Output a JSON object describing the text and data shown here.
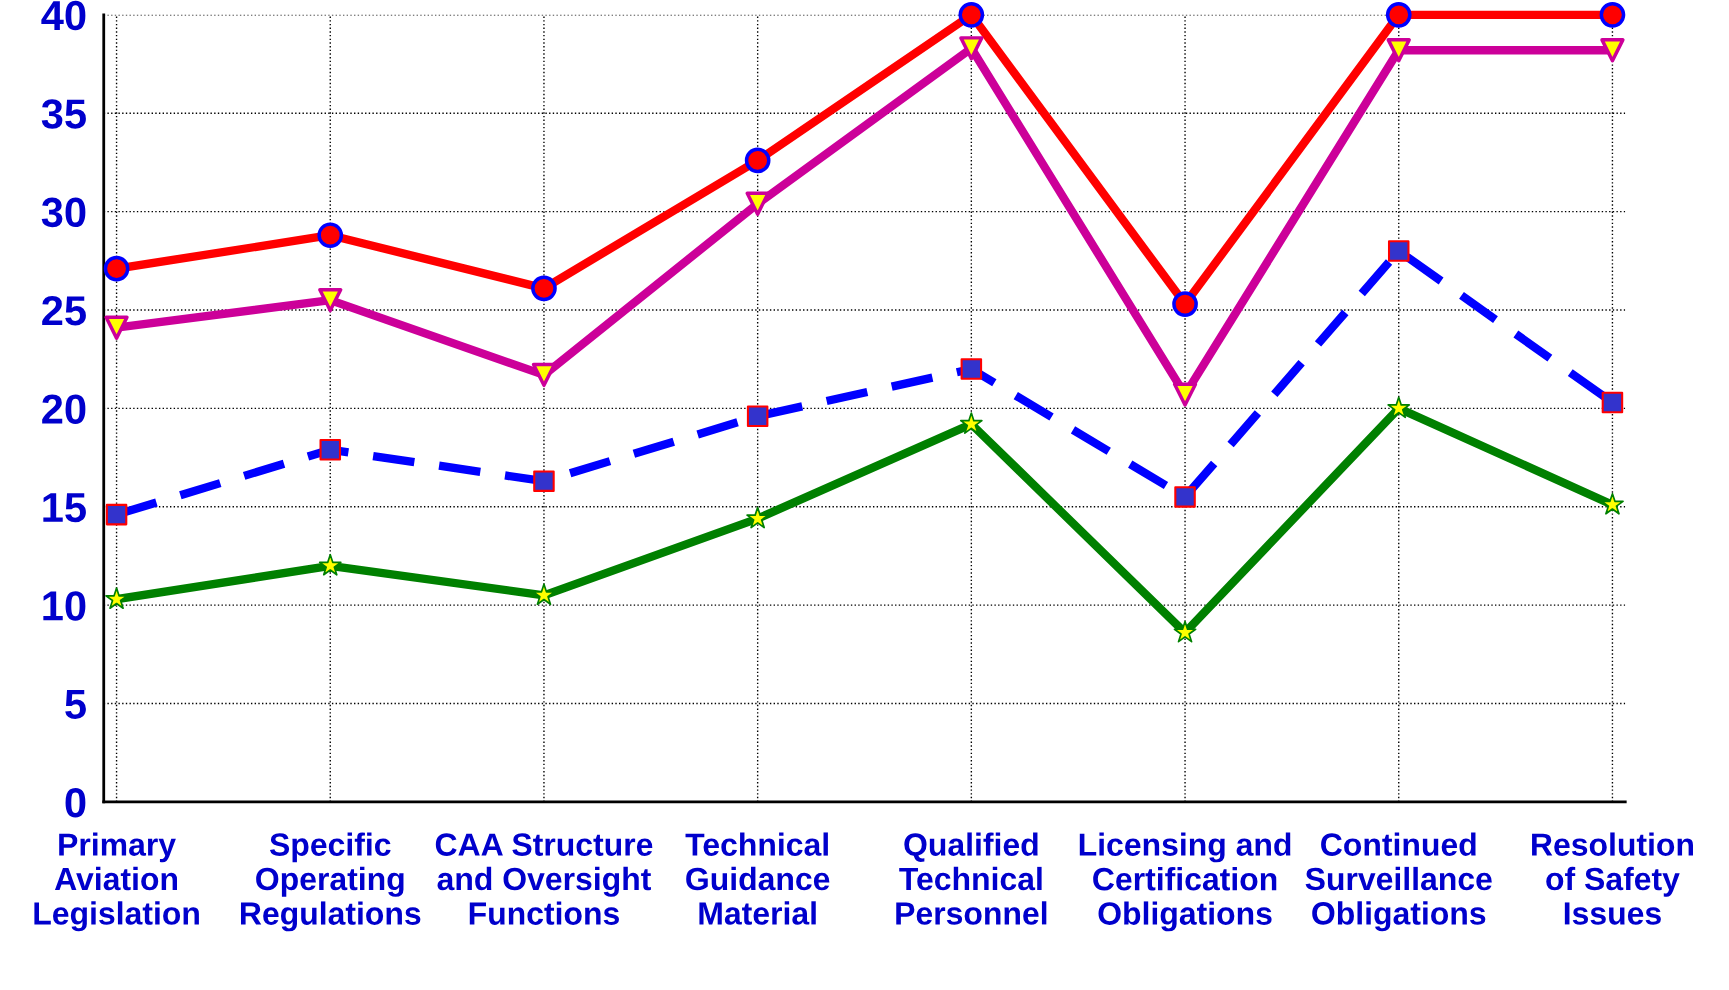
{
  "chart_data": {
    "type": "line",
    "categories": [
      "Primary\nAviation\nLegislation",
      "Specific\nOperating\nRegulations",
      "CAA Structure\nand Oversight\nFunctions",
      "Technical\nGuidance\nMaterial",
      "Qualified\nTechnical\nPersonnel",
      "Licensing and\nCertification\nObligations",
      "Continued\nSurveillance\nObligations",
      "Resolution\nof Safety\nIssues"
    ],
    "series": [
      {
        "color": "#ff0000",
        "marker": "circle",
        "line_style": "solid",
        "values": [
          27.1,
          28.8,
          26.1,
          32.6,
          40,
          25.3,
          40,
          40
        ]
      },
      {
        "color": "#cc0099",
        "marker": "triangle",
        "line_style": "solid",
        "values": [
          24.1,
          25.5,
          21.7,
          30.4,
          38.3,
          20.7,
          38.2,
          38.2
        ]
      },
      {
        "color": "#0000ff",
        "marker": "square",
        "line_style": "dashed",
        "values": [
          14.6,
          17.9,
          16.3,
          19.6,
          22,
          15.5,
          28,
          20.3
        ]
      },
      {
        "color": "#008000",
        "marker": "star",
        "line_style": "solid",
        "values": [
          10.3,
          12,
          10.5,
          14.4,
          19.2,
          8.6,
          20,
          15.1
        ]
      }
    ],
    "ylim": [
      0,
      40
    ],
    "yticks": [
      0,
      5,
      10,
      15,
      20,
      25,
      30,
      35,
      40
    ],
    "grid": true,
    "legend": false
  }
}
